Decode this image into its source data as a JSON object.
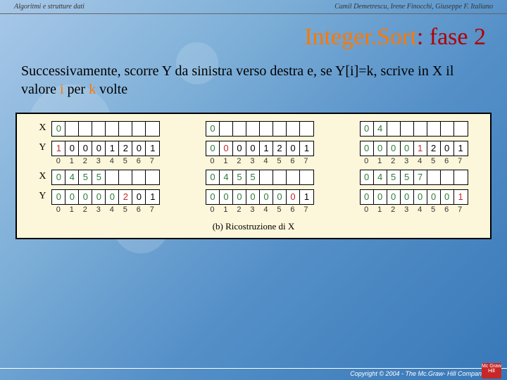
{
  "header": {
    "left": "Algoritmi e strutture dati",
    "right": "Camil Demetrescu, Irene Finocchi, Giuseppe F. Italiano"
  },
  "title": {
    "prefix": "Integer.Sort",
    "rest": ": fase 2"
  },
  "paragraph": {
    "p1": "Successivamente, scorre Y da sinistra verso destra e, se Y[i]=k, scrive in X il valore ",
    "p2": "i",
    "p3": " per ",
    "p4": "k",
    "p5": " volte"
  },
  "caption": "(b) Ricostruzione di X",
  "footer": "Copyright © 2004 - The Mc.Graw- Hill Companies, srl",
  "logo": "Mc Graw Hill",
  "colors": {
    "title_red": "#b00000",
    "orange": "#ff7700",
    "panel_bg": "#fcf6da",
    "green": "#2e7d32",
    "red": "#c62828"
  },
  "rows": [
    {
      "blocks": [
        {
          "lbl": "X",
          "cells": [
            "0",
            "",
            "",
            "",
            "",
            "",
            "",
            ""
          ],
          "classes": [
            "g",
            "",
            "",
            "",
            "",
            "",
            "",
            ""
          ],
          "idx": null
        },
        {
          "lbl": "",
          "cells": [
            "0",
            "",
            "",
            "",
            "",
            "",
            "",
            ""
          ],
          "classes": [
            "g",
            "",
            "",
            "",
            "",
            "",
            "",
            ""
          ],
          "idx": null
        },
        {
          "lbl": "",
          "cells": [
            "0",
            "4",
            "",
            "",
            "",
            "",
            "",
            ""
          ],
          "classes": [
            "g",
            "g",
            "",
            "",
            "",
            "",
            "",
            ""
          ],
          "idx": null
        }
      ]
    },
    {
      "blocks": [
        {
          "lbl": "Y",
          "cells": [
            "1",
            "0",
            "0",
            "0",
            "1",
            "2",
            "0",
            "1"
          ],
          "classes": [
            "r",
            "",
            "",
            "",
            "",
            "",
            "",
            ""
          ],
          "idx": [
            "0",
            "1",
            "2",
            "3",
            "4",
            "5",
            "6",
            "7"
          ]
        },
        {
          "lbl": "",
          "cells": [
            "0",
            "0",
            "0",
            "0",
            "1",
            "2",
            "0",
            "1"
          ],
          "classes": [
            "g",
            "r",
            "",
            "",
            "",
            "",
            "",
            ""
          ],
          "idx": [
            "0",
            "1",
            "2",
            "3",
            "4",
            "5",
            "6",
            "7"
          ]
        },
        {
          "lbl": "",
          "cells": [
            "0",
            "0",
            "0",
            "0",
            "1",
            "2",
            "0",
            "1"
          ],
          "classes": [
            "g",
            "g",
            "g",
            "g",
            "r",
            "",
            "",
            ""
          ],
          "idx": [
            "0",
            "1",
            "2",
            "3",
            "4",
            "5",
            "6",
            "7"
          ]
        }
      ]
    },
    {
      "blocks": [
        {
          "lbl": "X",
          "cells": [
            "0",
            "4",
            "5",
            "5",
            "",
            "",
            "",
            ""
          ],
          "classes": [
            "g",
            "g",
            "g",
            "g",
            "",
            "",
            "",
            ""
          ],
          "idx": null
        },
        {
          "lbl": "",
          "cells": [
            "0",
            "4",
            "5",
            "5",
            "",
            "",
            "",
            ""
          ],
          "classes": [
            "g",
            "g",
            "g",
            "g",
            "",
            "",
            "",
            ""
          ],
          "idx": null
        },
        {
          "lbl": "",
          "cells": [
            "0",
            "4",
            "5",
            "5",
            "7",
            "",
            "",
            ""
          ],
          "classes": [
            "g",
            "g",
            "g",
            "g",
            "g",
            "",
            "",
            ""
          ],
          "idx": null
        }
      ]
    },
    {
      "blocks": [
        {
          "lbl": "Y",
          "cells": [
            "0",
            "0",
            "0",
            "0",
            "0",
            "2",
            "0",
            "1"
          ],
          "classes": [
            "g",
            "g",
            "g",
            "g",
            "g",
            "r",
            "",
            ""
          ],
          "idx": [
            "0",
            "1",
            "2",
            "3",
            "4",
            "5",
            "6",
            "7"
          ]
        },
        {
          "lbl": "",
          "cells": [
            "0",
            "0",
            "0",
            "0",
            "0",
            "0",
            "0",
            "1"
          ],
          "classes": [
            "g",
            "g",
            "g",
            "g",
            "g",
            "g",
            "r",
            ""
          ],
          "idx": [
            "0",
            "1",
            "2",
            "3",
            "4",
            "5",
            "6",
            "7"
          ]
        },
        {
          "lbl": "",
          "cells": [
            "0",
            "0",
            "0",
            "0",
            "0",
            "0",
            "0",
            "1"
          ],
          "classes": [
            "g",
            "g",
            "g",
            "g",
            "g",
            "g",
            "g",
            "r"
          ],
          "idx": [
            "0",
            "1",
            "2",
            "3",
            "4",
            "5",
            "6",
            "7"
          ]
        }
      ]
    }
  ]
}
